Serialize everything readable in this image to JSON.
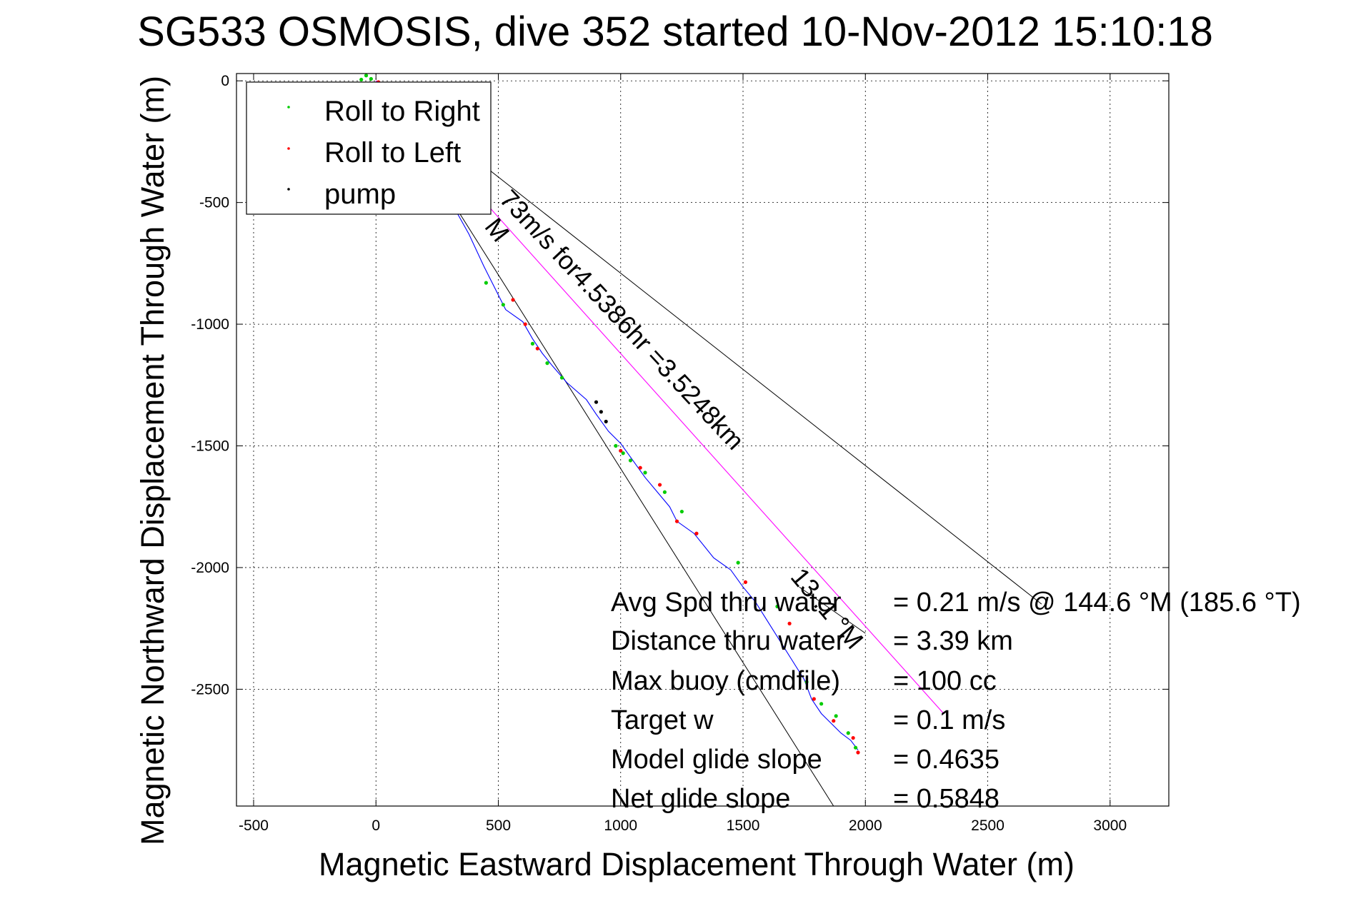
{
  "chart_data": {
    "type": "line",
    "title": "SG533 OSMOSIS, dive 352 started 10-Nov-2012 15:10:18",
    "xlabel": "Magnetic Eastward Displacement Through Water (m)",
    "ylabel": "Magnetic Northward Displacement Through Water (m)",
    "xlim": [
      -570,
      3240
    ],
    "ylim": [
      -2980,
      30
    ],
    "xticks": [
      -500,
      0,
      500,
      1000,
      1500,
      2000,
      2500,
      3000
    ],
    "xtick_labels": [
      "-500",
      "0",
      "500",
      "1000",
      "1500",
      "2000",
      "2500",
      "3000"
    ],
    "yticks": [
      0,
      -500,
      -1000,
      -1500,
      -2000,
      -2500
    ],
    "ytick_labels": [
      "0",
      "-500",
      "-1000",
      "-1500",
      "-2000",
      "-2500"
    ],
    "grid": true,
    "legend": {
      "placement": "top-left",
      "entries": [
        {
          "label": "Roll to Right",
          "color": "#00cc00"
        },
        {
          "label": "Roll to Left",
          "color": "#ff0000"
        },
        {
          "label": "pump",
          "color": "#000000"
        }
      ]
    },
    "series": [
      {
        "name": "track",
        "color": "#0000ff",
        "x": [
          0,
          80,
          180,
          280,
          380,
          440,
          480,
          530,
          600,
          640,
          680,
          720,
          780,
          860,
          900,
          950,
          1000,
          1050,
          1100,
          1150,
          1200,
          1230,
          1300,
          1380,
          1450,
          1500,
          1550,
          1600,
          1650,
          1700,
          1750,
          1780,
          1820,
          1860,
          1900,
          1940,
          1970
        ],
        "y": [
          0,
          -60,
          -250,
          -450,
          -630,
          -760,
          -840,
          -940,
          -990,
          -1060,
          -1120,
          -1170,
          -1240,
          -1310,
          -1370,
          -1440,
          -1490,
          -1560,
          -1630,
          -1690,
          -1750,
          -1810,
          -1860,
          -1960,
          -2010,
          -2080,
          -2140,
          -2220,
          -2300,
          -2380,
          -2460,
          -2540,
          -2600,
          -2640,
          -2680,
          -2710,
          -2750
        ]
      },
      {
        "name": "roll_right",
        "color": "#00cc00",
        "x": [
          -60,
          -40,
          -20,
          450,
          520,
          640,
          700,
          760,
          980,
          1010,
          1040,
          1100,
          1180,
          1250,
          1480,
          1640,
          1760,
          1820,
          1880,
          1930,
          1960
        ],
        "y": [
          5,
          22,
          8,
          -830,
          -920,
          -1080,
          -1160,
          -1220,
          -1500,
          -1530,
          -1560,
          -1610,
          -1690,
          -1770,
          -1980,
          -2160,
          -2470,
          -2560,
          -2610,
          -2680,
          -2740
        ]
      },
      {
        "name": "roll_left",
        "color": "#ff0000",
        "x": [
          10,
          560,
          610,
          660,
          1000,
          1080,
          1160,
          1230,
          1310,
          1510,
          1690,
          1790,
          1870,
          1950,
          1970
        ],
        "y": [
          -5,
          -900,
          -1000,
          -1100,
          -1520,
          -1590,
          -1660,
          -1810,
          -1860,
          -2060,
          -2230,
          -2540,
          -2630,
          -2700,
          -2760
        ]
      },
      {
        "name": "pump",
        "color": "#000000",
        "x": [
          900,
          920,
          940
        ],
        "y": [
          -1320,
          -1360,
          -1400
        ]
      },
      {
        "name": "depth-average current",
        "color": "#ff00ff",
        "x": [
          0,
          2320
        ],
        "y": [
          0,
          -2600
        ]
      }
    ],
    "guide_lines": [
      {
        "x": [
          0,
          1870
        ],
        "y": [
          0,
          -2980
        ],
        "color": "#000000"
      },
      {
        "x": [
          0,
          2720
        ],
        "y": [
          0,
          -2150
        ],
        "color": "#000000"
      },
      {
        "x": [
          1730,
          2000
        ],
        "y": [
          -2080,
          -2270
        ],
        "color": "#000000"
      }
    ],
    "annotations": [
      {
        "text": "M",
        "x": 440,
        "y": -600,
        "angle": 52
      },
      {
        "text": "73m/s for4.5386hr =3.5248km",
        "x": 500,
        "y": -490,
        "angle": 47
      },
      {
        "text": "13 .1 °M",
        "x": 1690,
        "y": -2040,
        "angle": 50
      }
    ],
    "stats": [
      {
        "label": "Avg Spd thru water",
        "value": "=  0.21 m/s @ 144.6 °M (185.6 °T)"
      },
      {
        "label": "Distance thru water",
        "value": "=  3.39 km"
      },
      {
        "label": "Max buoy (cmdfile)",
        "value": "= 100 cc"
      },
      {
        "label": "Target w",
        "value": "= 0.1 m/s"
      },
      {
        "label": "Model glide slope",
        "value": "= 0.4635"
      },
      {
        "label": "Net glide slope",
        "value": "= 0.5848"
      }
    ]
  }
}
